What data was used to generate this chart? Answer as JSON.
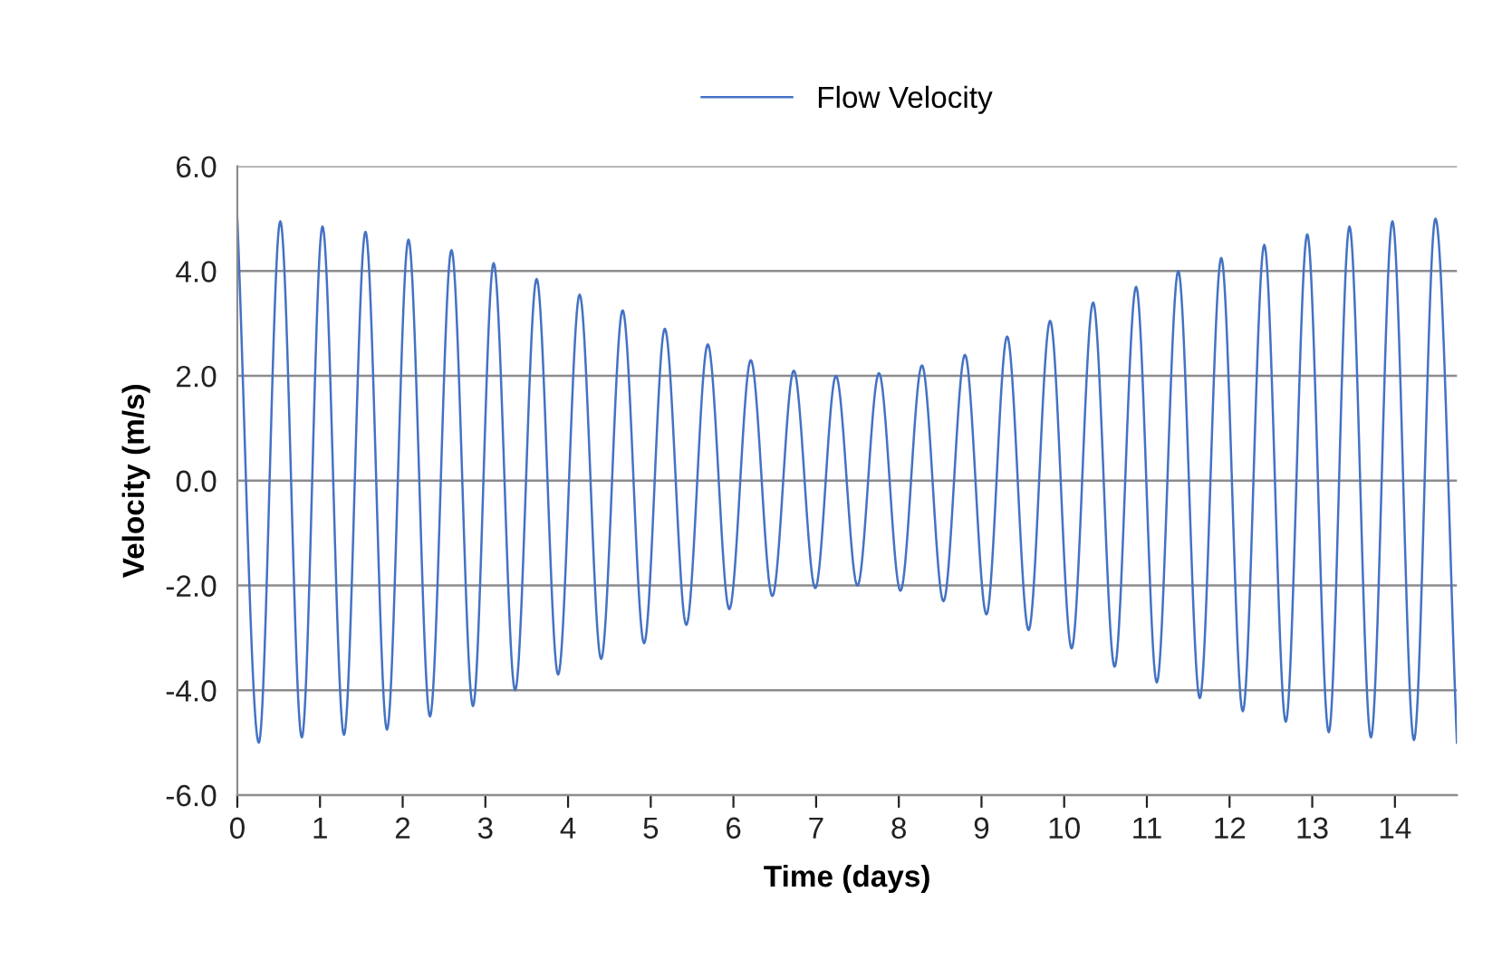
{
  "chart_data": {
    "type": "line",
    "xlabel": "Time (days)",
    "ylabel": "Velocity (m/s)",
    "x": [
      0,
      0.26,
      0.52,
      0.78,
      1.03,
      1.29,
      1.55,
      1.81,
      2.07,
      2.33,
      2.59,
      2.85,
      3.1,
      3.36,
      3.62,
      3.88,
      4.14,
      4.4,
      4.66,
      4.92,
      5.17,
      5.43,
      5.69,
      5.95,
      6.21,
      6.47,
      6.73,
      6.99,
      7.24,
      7.5,
      7.76,
      8.02,
      8.28,
      8.54,
      8.8,
      9.06,
      9.31,
      9.57,
      9.83,
      10.09,
      10.35,
      10.61,
      10.87,
      11.12,
      11.38,
      11.64,
      11.9,
      12.16,
      12.42,
      12.68,
      12.94,
      13.2,
      13.45,
      13.71,
      13.97,
      14.23,
      14.49,
      14.75
    ],
    "series": [
      {
        "name": "Flow Velocity",
        "color": "#4472c4",
        "values": [
          5.0,
          -5.0,
          4.95,
          -4.9,
          4.85,
          -4.85,
          4.75,
          -4.75,
          4.6,
          -4.5,
          4.4,
          -4.3,
          4.15,
          -4.0,
          3.85,
          -3.7,
          3.55,
          -3.4,
          3.25,
          -3.1,
          2.9,
          -2.75,
          2.6,
          -2.45,
          2.3,
          -2.2,
          2.1,
          -2.05,
          2.0,
          -2.0,
          2.05,
          -2.1,
          2.2,
          -2.3,
          2.4,
          -2.55,
          2.75,
          -2.85,
          3.05,
          -3.2,
          3.4,
          -3.55,
          3.7,
          -3.85,
          4.0,
          -4.15,
          4.25,
          -4.4,
          4.5,
          -4.6,
          4.7,
          -4.8,
          4.85,
          -4.9,
          4.95,
          -4.95,
          5.0,
          -5.0
        ]
      }
    ],
    "xlim": [
      0,
      14.75
    ],
    "xticks": [
      0,
      1,
      2,
      3,
      4,
      5,
      6,
      7,
      8,
      9,
      10,
      11,
      12,
      13,
      14
    ],
    "ylim": [
      -6,
      6
    ],
    "yticks": [
      {
        "value": -6,
        "label": "-6.0"
      },
      {
        "value": -4,
        "label": "-4.0"
      },
      {
        "value": -2,
        "label": "-2.0"
      },
      {
        "value": 0,
        "label": "0.0"
      },
      {
        "value": 2,
        "label": "2.0"
      },
      {
        "value": 4,
        "label": "4.0"
      },
      {
        "value": 6,
        "label": "6.0"
      }
    ],
    "grid": "y",
    "legend": "top",
    "marker": "none",
    "line_style": "solid"
  }
}
